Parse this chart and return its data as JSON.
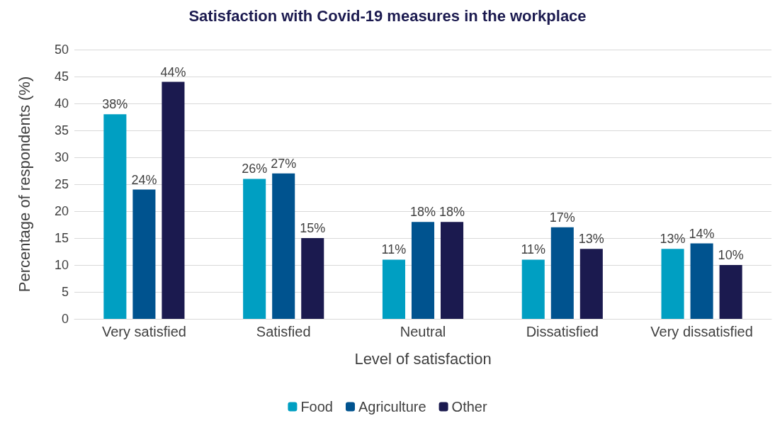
{
  "chart_data": {
    "type": "bar",
    "title": "Satisfaction with Covid-19 measures in the workplace",
    "xlabel": "Level of satisfaction",
    "ylabel": "Percentage of respondents (%)",
    "categories": [
      "Very satisfied",
      "Satisfied",
      "Neutral",
      "Dissatisfied",
      "Very dissatisfied"
    ],
    "series": [
      {
        "name": "Food",
        "color": "#009fc2",
        "values": [
          38,
          26,
          11,
          11,
          13
        ],
        "value_labels": [
          "38%",
          "26%",
          "11%",
          "11%",
          "13%"
        ]
      },
      {
        "name": "Agriculture",
        "color": "#00538f",
        "values": [
          24,
          27,
          18,
          17,
          14
        ],
        "value_labels": [
          "24%",
          "27%",
          "18%",
          "17%",
          "14%"
        ]
      },
      {
        "name": "Other",
        "color": "#1b1a4f",
        "values": [
          44,
          15,
          18,
          13,
          10
        ],
        "value_labels": [
          "44%",
          "15%",
          "18%",
          "13%",
          "10%"
        ]
      }
    ],
    "ylim": [
      0,
      50
    ],
    "yticks": [
      0,
      5,
      10,
      15,
      20,
      25,
      30,
      35,
      40,
      45,
      50
    ],
    "grid": "y",
    "legend": "bottom"
  }
}
